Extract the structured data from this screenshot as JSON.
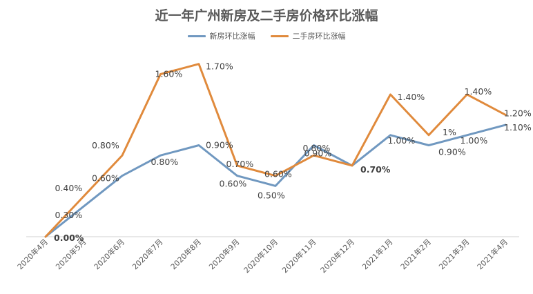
{
  "chart_data": {
    "type": "line",
    "title": "近一年广州新房及二手房价格环比涨幅",
    "legend_position": "top-center",
    "grid": false,
    "categories": [
      "2020年4月",
      "2020年5月",
      "2020年6月",
      "2020年7月",
      "2020年8月",
      "2020年9月",
      "2020年10月",
      "2020年11月",
      "2020年12月",
      "2021年1月",
      "2021年2月",
      "2021年3月",
      "2021年4月"
    ],
    "ylim": [
      0,
      1.8
    ],
    "series": [
      {
        "name": "新房环比涨幅",
        "color": "#7098c0",
        "values": [
          0.0,
          0.3,
          0.6,
          0.8,
          0.9,
          0.6,
          0.5,
          0.9,
          0.7,
          1.0,
          0.9,
          1.0,
          1.1
        ],
        "labels": [
          "0.00%",
          "0.30%",
          "0.60%",
          "0.80%",
          "0.90%",
          "0.60%",
          "0.50%",
          "0.90%",
          "0.70%",
          "1.00%",
          "0.90%",
          "1.00%",
          "1.10%"
        ]
      },
      {
        "name": "二手房环比涨幅",
        "color": "#e08a3c",
        "values": [
          0.0,
          0.4,
          0.8,
          1.6,
          1.7,
          0.7,
          0.6,
          0.8,
          0.7,
          1.4,
          1.0,
          1.4,
          1.2
        ],
        "labels": [
          "0.00%",
          "0.40%",
          "0.80%",
          "1.60%",
          "1.70%",
          "0.70%",
          "0.60%",
          "0.80%",
          "0.70%",
          "1.40%",
          "1%",
          "1.40%",
          "1.20%"
        ]
      }
    ]
  }
}
